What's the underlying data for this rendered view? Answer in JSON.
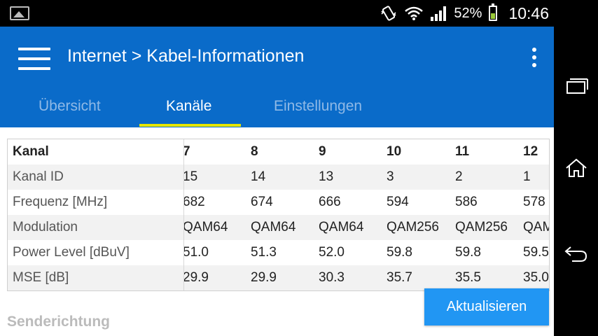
{
  "status_bar": {
    "battery_pct": "52%",
    "time": "10:46",
    "battery_level": 0.52,
    "icons": [
      "image-notification-icon",
      "vibrate-icon",
      "wifi-icon",
      "signal-icon",
      "battery-icon"
    ]
  },
  "toolbar": {
    "title": "Internet > Kabel-Informationen",
    "menu_icon": "hamburger-menu-icon",
    "overflow_icon": "more-vert-icon"
  },
  "tabs": [
    {
      "label": "Übersicht",
      "active": false
    },
    {
      "label": "Kanäle",
      "active": true
    },
    {
      "label": "Einstellungen",
      "active": false
    }
  ],
  "table": {
    "header": {
      "label": "Kanal",
      "values": [
        "7",
        "8",
        "9",
        "10",
        "11",
        "12"
      ]
    },
    "rows": [
      {
        "label": "Kanal ID",
        "values": [
          "15",
          "14",
          "13",
          "3",
          "2",
          "1"
        ]
      },
      {
        "label": "Frequenz [MHz]",
        "values": [
          "682",
          "674",
          "666",
          "594",
          "586",
          "578"
        ]
      },
      {
        "label": "Modulation",
        "values": [
          "QAM64",
          "QAM64",
          "QAM64",
          "QAM256",
          "QAM256",
          "QAM"
        ]
      },
      {
        "label": "Power Level [dBuV]",
        "values": [
          "51.0",
          "51.3",
          "52.0",
          "59.8",
          "59.8",
          "59.5"
        ]
      },
      {
        "label": "MSE [dB]",
        "values": [
          "29.9",
          "29.9",
          "30.3",
          "35.7",
          "35.5",
          "35.0"
        ]
      }
    ]
  },
  "update_button": "Aktualisieren",
  "section_label": "Senderichtung",
  "colors": {
    "primary": "#0a6bc9",
    "accent": "#2196f3",
    "tab_indicator": "#e6e600"
  },
  "nav_bar": {
    "icons": [
      "recent-apps-icon",
      "home-icon",
      "back-icon"
    ]
  }
}
